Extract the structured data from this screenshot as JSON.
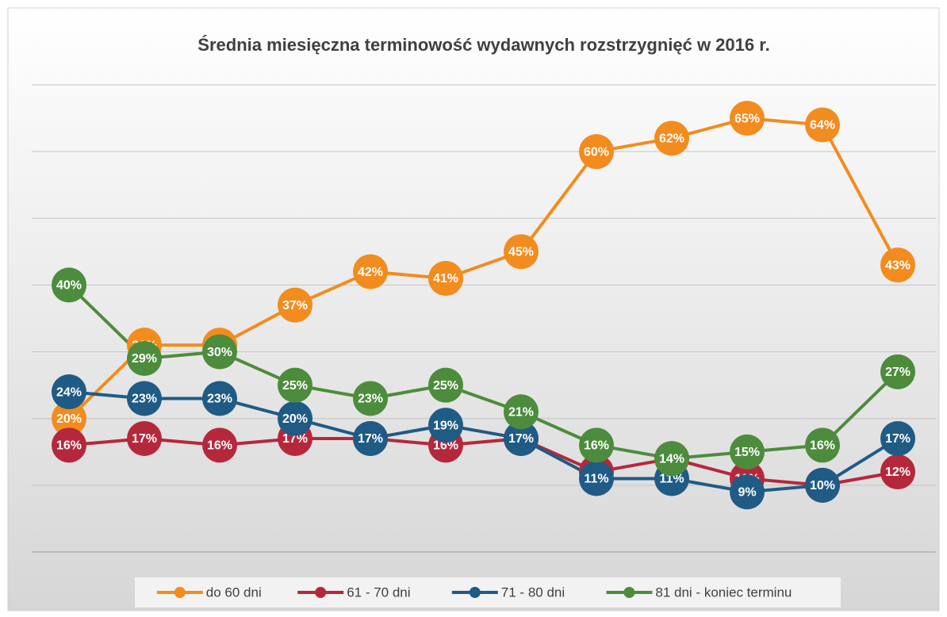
{
  "chart_data": {
    "type": "line",
    "title": "Średnia miesięczna terminowość wydawnych rozstrzygnięć w 2016 r.",
    "ylim": [
      0,
      70
    ],
    "yticks": [
      0,
      10,
      20,
      30,
      40,
      50,
      60,
      70
    ],
    "grid": true,
    "legend": "bottom",
    "series": [
      {
        "name": "do 60 dni",
        "color": "#f28c1e",
        "values": [
          20,
          31,
          31,
          37,
          42,
          41,
          45,
          60,
          62,
          65,
          64,
          43
        ],
        "value_labels": [
          "20%",
          "31%",
          "31%",
          "37%",
          "42%",
          "41%",
          "45%",
          "60%",
          "62%",
          "65%",
          "64%",
          "43%"
        ]
      },
      {
        "name": "61 - 70 dni",
        "color": "#b5283c",
        "values": [
          16,
          17,
          16,
          17,
          17,
          16,
          17,
          12,
          14,
          11,
          10,
          12
        ],
        "value_labels": [
          "16%",
          "17%",
          "16%",
          "17%",
          "17%",
          "16%",
          "17%",
          "12%",
          "14%",
          "11%",
          "10%",
          "12%"
        ]
      },
      {
        "name": "71 - 80 dni",
        "color": "#1f5b85",
        "values": [
          24,
          23,
          23,
          20,
          17,
          19,
          17,
          11,
          11,
          9,
          10,
          17
        ],
        "value_labels": [
          "24%",
          "23%",
          "23%",
          "20%",
          "17%",
          "19%",
          "17%",
          "11%",
          "11%",
          "9%",
          "10%",
          "17%"
        ]
      },
      {
        "name": "81 dni - koniec terminu",
        "color": "#4c8c3c",
        "values": [
          40,
          29,
          30,
          25,
          23,
          25,
          21,
          16,
          14,
          15,
          16,
          27
        ],
        "value_labels": [
          "40%",
          "29%",
          "30%",
          "25%",
          "23%",
          "25%",
          "21%",
          "16%",
          "14%",
          "15%",
          "16%",
          "27%"
        ]
      }
    ]
  }
}
